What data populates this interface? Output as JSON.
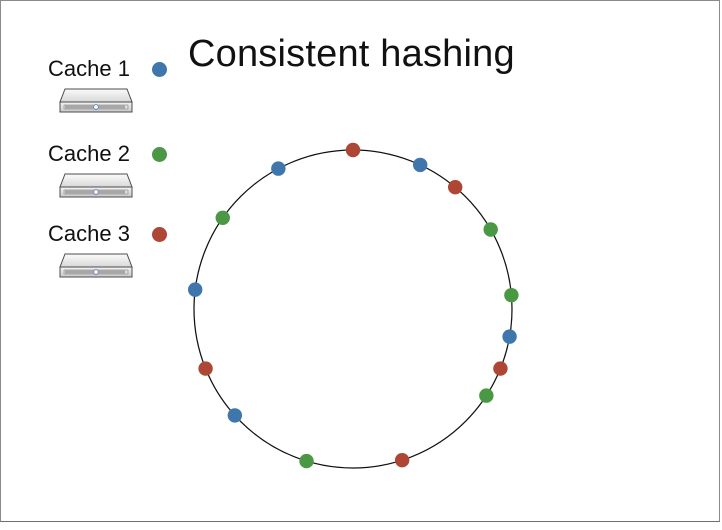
{
  "slide": {
    "title": "Consistent hashing"
  },
  "legend": {
    "items": [
      {
        "label": "Cache 1",
        "color": "#3f77ad",
        "icon": "server-icon"
      },
      {
        "label": "Cache 2",
        "color": "#4a9844",
        "icon": "server-icon"
      },
      {
        "label": "Cache 3",
        "color": "#ad4634",
        "icon": "server-icon"
      }
    ]
  },
  "ring": {
    "stroke_color": "#111111",
    "nodes": [
      {
        "cache": "Cache 3",
        "color": "#ad4634",
        "angle": 0
      },
      {
        "cache": "Cache 1",
        "color": "#3f77ad",
        "angle": 25
      },
      {
        "cache": "Cache 3",
        "color": "#ad4634",
        "angle": 40
      },
      {
        "cache": "Cache 2",
        "color": "#4a9844",
        "angle": 60
      },
      {
        "cache": "Cache 2",
        "color": "#4a9844",
        "angle": 85
      },
      {
        "cache": "Cache 1",
        "color": "#3f77ad",
        "angle": 100
      },
      {
        "cache": "Cache 3",
        "color": "#ad4634",
        "angle": 112
      },
      {
        "cache": "Cache 2",
        "color": "#4a9844",
        "angle": 123
      },
      {
        "cache": "Cache 3",
        "color": "#ad4634",
        "angle": 162
      },
      {
        "cache": "Cache 2",
        "color": "#4a9844",
        "angle": 197
      },
      {
        "cache": "Cache 1",
        "color": "#3f77ad",
        "angle": 228
      },
      {
        "cache": "Cache 3",
        "color": "#ad4634",
        "angle": 248
      },
      {
        "cache": "Cache 1",
        "color": "#3f77ad",
        "angle": 277
      },
      {
        "cache": "Cache 2",
        "color": "#4a9844",
        "angle": 305
      },
      {
        "cache": "Cache 1",
        "color": "#3f77ad",
        "angle": 332
      }
    ]
  }
}
